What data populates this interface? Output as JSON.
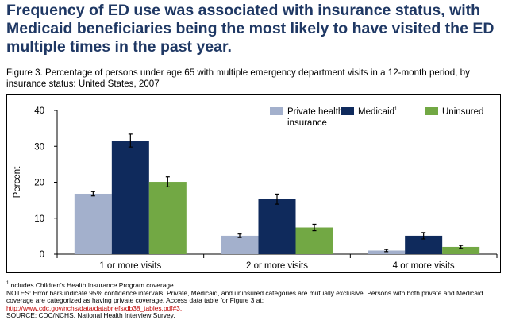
{
  "headline": "Frequency of ED use was associated with insurance status, with Medicaid beneficiaries being the most likely to have visited the ED multiple times in the past year.",
  "figure_caption": "Figure 3. Percentage of persons under age 65 with multiple emergency department visits in a 12-month period, by insurance status: United States, 2007",
  "notes": {
    "footnote_mark": "1",
    "footnote": "Includes Children's Health Insurance Program coverage.",
    "notes_text": "NOTES: Error bars indicate 95% confidence intervals. Private, Medicaid, and uninsured categories are mutually exclusive. Persons with both private and Medicaid coverage are categorized as having private coverage. Access data table for Figure 3 at:",
    "link": "http://www.cdc.gov/nchs/data/databriefs/db38_tables.pdf#3.",
    "source": "SOURCE: CDC/NCHS, National Health Interview Survey."
  },
  "chart_data": {
    "type": "bar",
    "categories": [
      "1 or more visits",
      "2 or more visits",
      "4 or more visits"
    ],
    "series": [
      {
        "name": "Private health insurance",
        "values": [
          16.8,
          5.1,
          1.0
        ],
        "err": [
          0.6,
          0.5,
          0.3
        ],
        "color": "#a3b0cc"
      },
      {
        "name": "Medicaid",
        "name_sup": "1",
        "values": [
          31.6,
          15.3,
          5.1
        ],
        "err": [
          1.8,
          1.4,
          0.9
        ],
        "color": "#0f2a5c"
      },
      {
        "name": "Uninsured",
        "values": [
          20.1,
          7.4,
          2.0
        ],
        "err": [
          1.4,
          0.9,
          0.4
        ],
        "color": "#72a844"
      }
    ],
    "ylabel": "Percent",
    "xlabel": "",
    "ylim": [
      0,
      40
    ],
    "yticks": [
      0,
      10,
      20,
      30,
      40
    ],
    "grid": false,
    "legend": "top-right"
  }
}
